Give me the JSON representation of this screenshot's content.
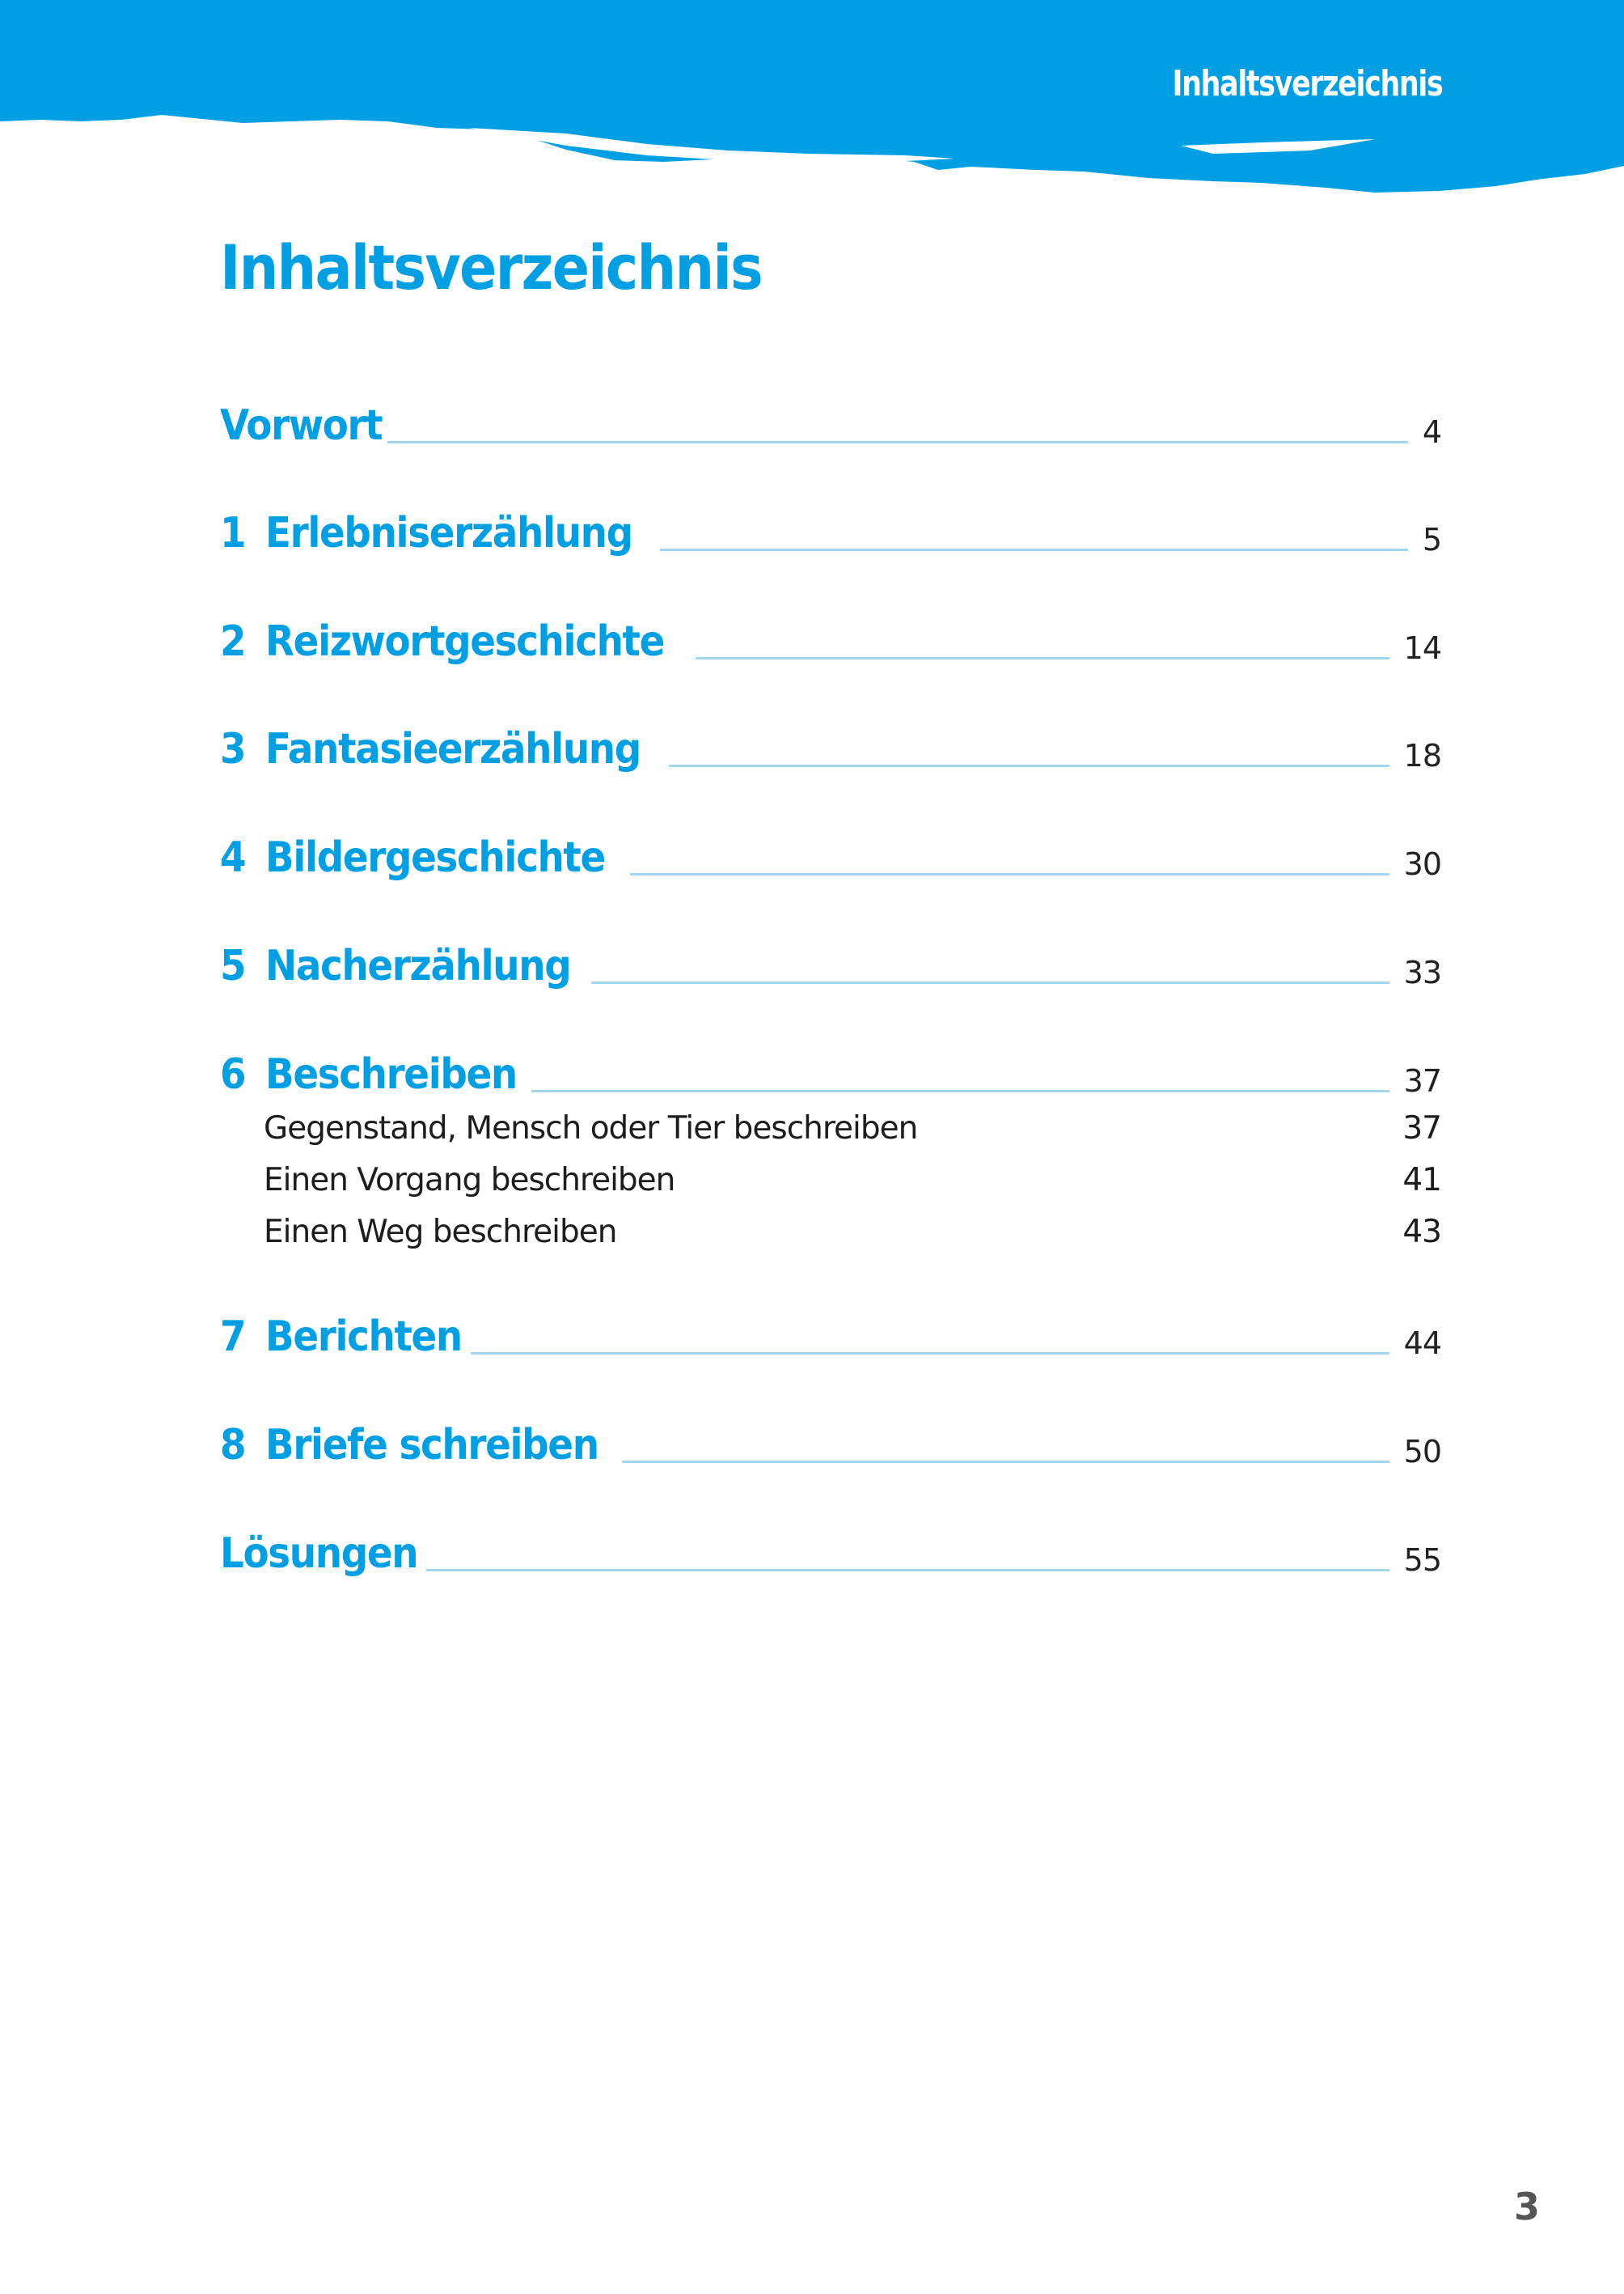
{
  "header": {
    "title": "Inhaltsverzeichnis",
    "color": "#009fe3"
  },
  "page_title": "Inhaltsverzeichnis",
  "entries": [
    {
      "number": "",
      "label": "Vorwort",
      "page": "4"
    },
    {
      "number": "1",
      "label": "Erlebniserzählung",
      "page": "5"
    },
    {
      "number": "2",
      "label": "Reizwortgeschichte",
      "page": "14"
    },
    {
      "number": "3",
      "label": "Fantasieerzählung",
      "page": "18"
    },
    {
      "number": "4",
      "label": "Bildergeschichte",
      "page": "30"
    },
    {
      "number": "5",
      "label": "Nacherzählung",
      "page": "33"
    },
    {
      "number": "6",
      "label": "Beschreiben",
      "page": "37",
      "subentries": [
        {
          "label": "Gegenstand, Mensch oder Tier beschreiben",
          "page": "37"
        },
        {
          "label": "Einen Vorgang beschreiben",
          "page": "41"
        },
        {
          "label": "Einen Weg beschreiben",
          "page": "43"
        }
      ]
    },
    {
      "number": "7",
      "label": "Berichten",
      "page": "44"
    },
    {
      "number": "8",
      "label": "Briefe schreiben",
      "page": "50"
    },
    {
      "number": "",
      "label": "Lösungen",
      "page": "55"
    }
  ],
  "page_number": "3"
}
